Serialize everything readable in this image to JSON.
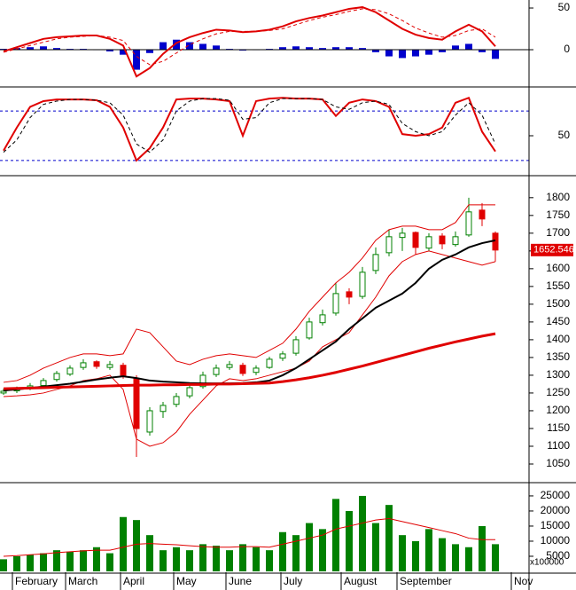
{
  "chart_data": [
    {
      "type": "macd",
      "ylim": [
        -43.6,
        59.6
      ],
      "yticks": [
        0,
        50
      ],
      "series": [
        {
          "color": "#e00000",
          "width": 2,
          "values": [
            -2,
            3,
            8,
            13,
            15,
            16,
            17,
            17,
            13,
            5,
            -32,
            -22,
            -5,
            8,
            15,
            20,
            24,
            23,
            21,
            22,
            24,
            28,
            34,
            38,
            41,
            45,
            49,
            51,
            45,
            35,
            25,
            18,
            14,
            12,
            22,
            30,
            22,
            4
          ]
        },
        {
          "color": "#e00000",
          "width": 1,
          "dashed": true,
          "values": [
            -3,
            1,
            5,
            9,
            13,
            15,
            16,
            17,
            15,
            11,
            -8,
            -18,
            -14,
            -4,
            6,
            13,
            19,
            22,
            22,
            22,
            23,
            25,
            30,
            35,
            39,
            42,
            46,
            49,
            48,
            43,
            35,
            26,
            20,
            15,
            17,
            23,
            25,
            15
          ]
        }
      ],
      "histogram": {
        "color": "#0000cc",
        "values": [
          1,
          2,
          3,
          4,
          2,
          1,
          1,
          0,
          -2,
          -6,
          -24,
          -4,
          9,
          12,
          9,
          7,
          5,
          1,
          -1,
          0,
          1,
          3,
          4,
          3,
          2,
          3,
          3,
          2,
          -3,
          -8,
          -10,
          -8,
          -6,
          -3,
          5,
          7,
          -3,
          -11
        ]
      }
    },
    {
      "type": "stochastic",
      "ylim": [
        2.7,
        107
      ],
      "yticks": [
        50
      ],
      "reference_lines": [
        80,
        20
      ],
      "reference_color": "#0000cc",
      "series": [
        {
          "color": "#e00000",
          "width": 2,
          "values": [
            32,
            60,
            85,
            92,
            94,
            94,
            94,
            93,
            85,
            60,
            20,
            35,
            60,
            94,
            95,
            95,
            94,
            92,
            50,
            92,
            95,
            96,
            95,
            95,
            94,
            74,
            90,
            94,
            92,
            85,
            52,
            50,
            52,
            60,
            90,
            96,
            55,
            31
          ]
        },
        {
          "color": "#000000",
          "width": 1,
          "dashed": true,
          "values": [
            30,
            45,
            72,
            88,
            92,
            94,
            94,
            93,
            90,
            75,
            40,
            30,
            45,
            80,
            92,
            95,
            95,
            93,
            70,
            72,
            90,
            95,
            95,
            95,
            94,
            85,
            82,
            90,
            92,
            88,
            65,
            55,
            50,
            55,
            75,
            90,
            75,
            40
          ]
        }
      ]
    },
    {
      "type": "candlestick",
      "ylim": [
        1000,
        1857
      ],
      "yticks": [
        1050,
        1100,
        1150,
        1200,
        1250,
        1300,
        1350,
        1400,
        1450,
        1500,
        1550,
        1600,
        1650,
        1700,
        1750,
        1800
      ],
      "up_color": "#008000",
      "down_color": "#e00000",
      "open": [
        1250,
        1256,
        1263,
        1271,
        1288,
        1303,
        1322,
        1338,
        1322,
        1328,
        1290,
        1140,
        1198,
        1218,
        1242,
        1268,
        1302,
        1322,
        1328,
        1308,
        1322,
        1348,
        1362,
        1405,
        1448,
        1475,
        1535,
        1522,
        1595,
        1645,
        1688,
        1702,
        1658,
        1692,
        1668,
        1695,
        1765,
        1700
      ],
      "high": [
        1262,
        1268,
        1278,
        1292,
        1312,
        1328,
        1345,
        1342,
        1340,
        1335,
        1300,
        1210,
        1225,
        1250,
        1275,
        1310,
        1330,
        1340,
        1335,
        1328,
        1352,
        1368,
        1410,
        1462,
        1485,
        1560,
        1545,
        1605,
        1660,
        1710,
        1715,
        1705,
        1700,
        1700,
        1705,
        1800,
        1785,
        1705
      ],
      "low": [
        1245,
        1250,
        1258,
        1265,
        1282,
        1298,
        1315,
        1318,
        1315,
        1290,
        1070,
        1130,
        1180,
        1210,
        1235,
        1262,
        1295,
        1315,
        1298,
        1300,
        1318,
        1340,
        1355,
        1400,
        1440,
        1468,
        1500,
        1515,
        1585,
        1635,
        1650,
        1640,
        1650,
        1655,
        1662,
        1690,
        1720,
        1620
      ],
      "close": [
        1255,
        1262,
        1270,
        1285,
        1305,
        1320,
        1335,
        1325,
        1330,
        1300,
        1150,
        1200,
        1215,
        1240,
        1265,
        1300,
        1320,
        1330,
        1305,
        1320,
        1345,
        1360,
        1400,
        1450,
        1470,
        1530,
        1520,
        1590,
        1640,
        1690,
        1700,
        1660,
        1690,
        1670,
        1690,
        1760,
        1740,
        1652.546
      ],
      "last_price_color": "#e00000",
      "series": [
        {
          "color": "#e00000",
          "width": 1,
          "values": [
            1280,
            1285,
            1300,
            1320,
            1335,
            1350,
            1360,
            1360,
            1355,
            1360,
            1430,
            1420,
            1380,
            1340,
            1330,
            1345,
            1355,
            1360,
            1355,
            1350,
            1370,
            1390,
            1430,
            1480,
            1520,
            1560,
            1590,
            1630,
            1680,
            1710,
            1720,
            1720,
            1710,
            1710,
            1730,
            1780,
            1780,
            1780
          ]
        },
        {
          "color": "#e00000",
          "width": 1,
          "values": [
            1240,
            1242,
            1245,
            1250,
            1260,
            1270,
            1285,
            1290,
            1300,
            1260,
            1120,
            1100,
            1110,
            1140,
            1190,
            1230,
            1270,
            1290,
            1285,
            1290,
            1300,
            1310,
            1320,
            1340,
            1380,
            1400,
            1420,
            1470,
            1520,
            1580,
            1620,
            1640,
            1650,
            1640,
            1630,
            1620,
            1610,
            1620
          ]
        },
        {
          "color": "#000000",
          "width": 2,
          "values": [
            1257,
            1260,
            1264,
            1268,
            1272,
            1276,
            1282,
            1288,
            1293,
            1297,
            1292,
            1285,
            1282,
            1280,
            1278,
            1277,
            1277,
            1277,
            1278,
            1280,
            1285,
            1300,
            1320,
            1345,
            1370,
            1395,
            1430,
            1460,
            1490,
            1510,
            1530,
            1560,
            1600,
            1625,
            1640,
            1660,
            1672,
            1680
          ]
        },
        {
          "color": "#e00000",
          "width": 3,
          "values": [
            1262,
            1263,
            1264,
            1265,
            1266,
            1267,
            1268,
            1269,
            1270,
            1271,
            1272,
            1272,
            1273,
            1273,
            1274,
            1274,
            1275,
            1275,
            1276,
            1277,
            1278,
            1282,
            1287,
            1293,
            1300,
            1308,
            1317,
            1326,
            1336,
            1346,
            1356,
            1366,
            1376,
            1385,
            1394,
            1402,
            1410,
            1417
          ]
        }
      ]
    },
    {
      "type": "volume",
      "ylim": [
        -300,
        29100
      ],
      "yticks": [
        5000,
        10000,
        15000,
        20000,
        25000
      ],
      "unit_label": "x100000",
      "color": "#008000",
      "values": [
        4000,
        5000,
        5500,
        6000,
        7000,
        6500,
        7000,
        8000,
        6000,
        18000,
        17000,
        12000,
        7000,
        8000,
        7000,
        9000,
        8500,
        7000,
        9000,
        8000,
        7000,
        13000,
        12000,
        16000,
        14000,
        24000,
        20000,
        25000,
        16000,
        22000,
        12000,
        10000,
        14000,
        11000,
        9000,
        8000,
        15000,
        9000
      ],
      "series": [
        {
          "color": "#e00000",
          "width": 1,
          "values": [
            5000,
            5200,
            5500,
            5800,
            6200,
            6500,
            6800,
            7000,
            7000,
            8000,
            9000,
            9200,
            9000,
            8800,
            8500,
            8200,
            8000,
            8000,
            8200,
            8200,
            8000,
            9000,
            10000,
            11000,
            12000,
            14000,
            15000,
            16000,
            17000,
            17500,
            16500,
            15500,
            14500,
            13500,
            12500,
            11000,
            10500,
            10500
          ]
        }
      ]
    }
  ],
  "months": [
    "February",
    "March",
    "April",
    "May",
    "June",
    "July",
    "August",
    "September",
    "Nov"
  ]
}
